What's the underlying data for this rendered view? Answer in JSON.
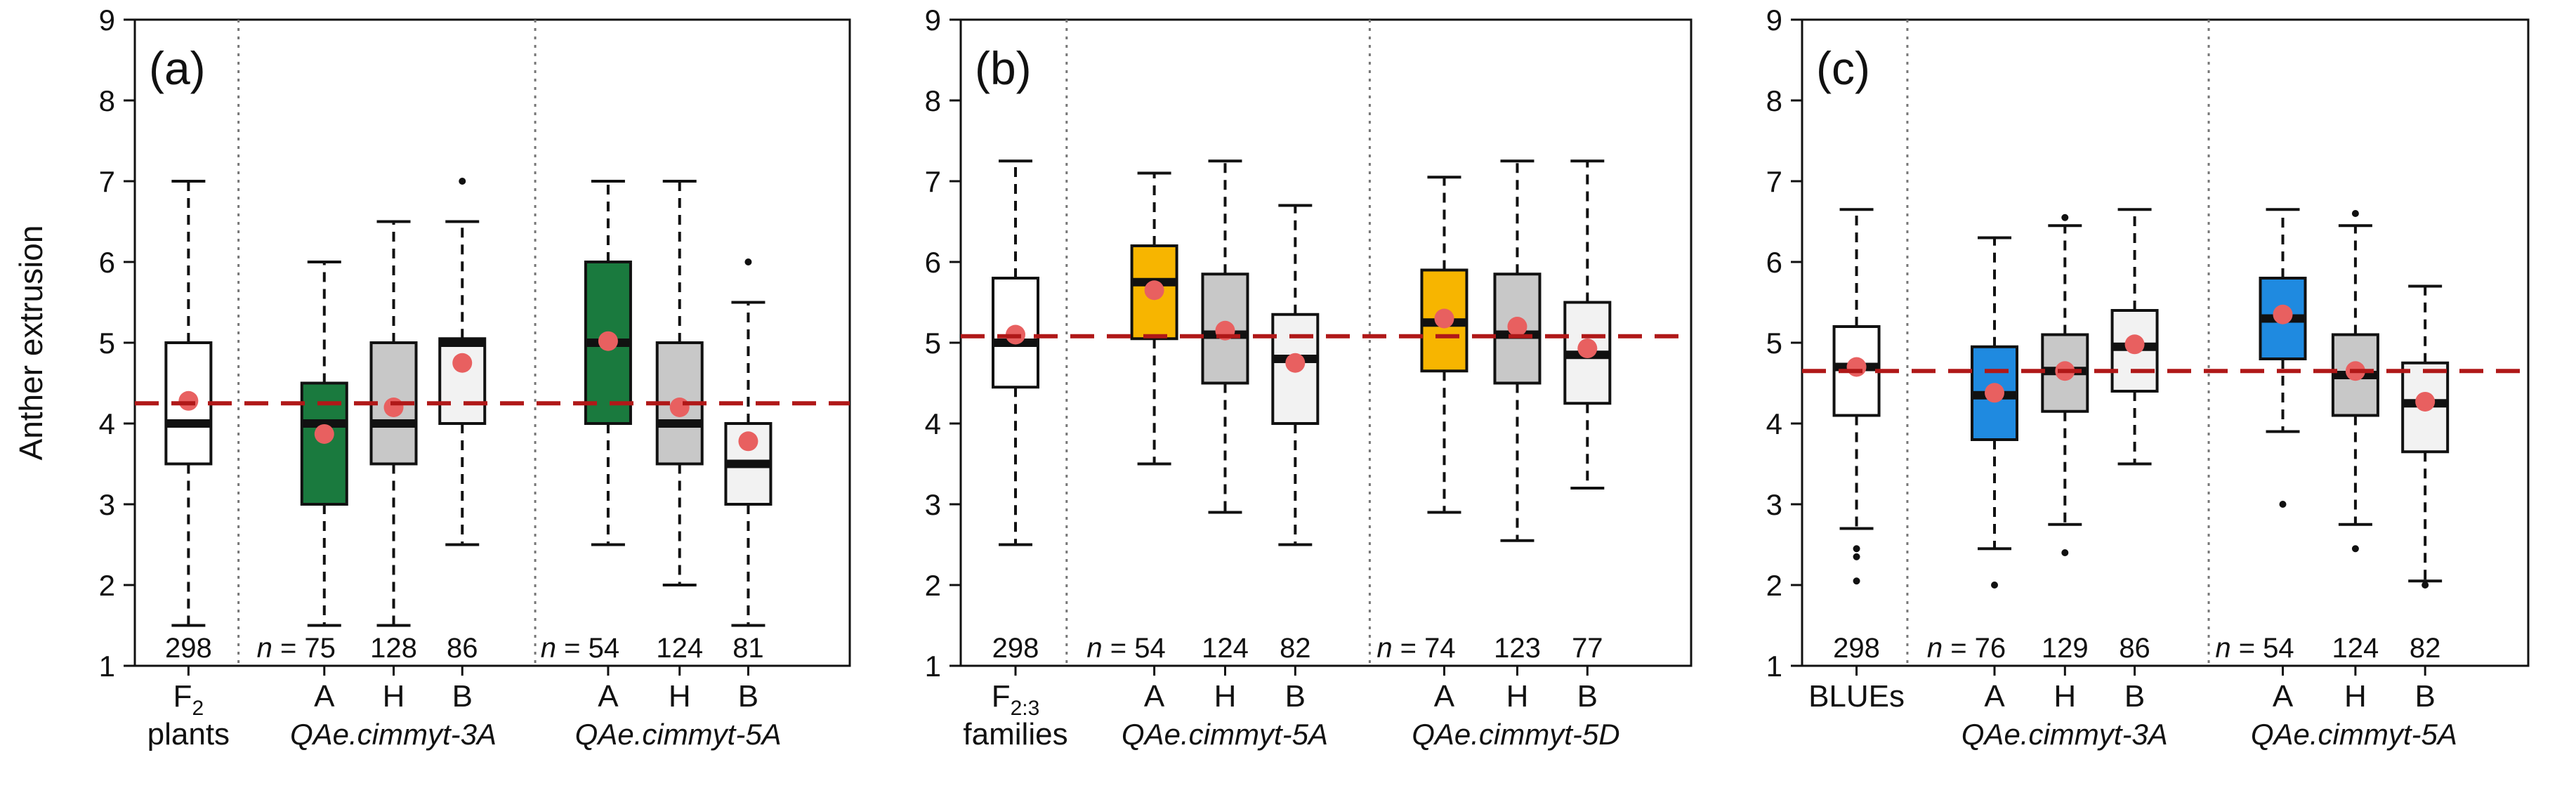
{
  "chart_data": [
    {
      "type": "box",
      "panel_label": "(a)",
      "ylabel": "Anther extrusion",
      "ylim": [
        1,
        9
      ],
      "yticks": [
        1,
        2,
        3,
        4,
        5,
        6,
        7,
        8,
        9
      ],
      "reference_line": 4.25,
      "reference_color": "#b01818",
      "n_prefix": "n =",
      "groups": [
        {
          "name_main": "F",
          "name_sub": "2",
          "name_line2": "plants",
          "qtl": "",
          "boxes": [
            {
              "label": "",
              "count": "298",
              "color": "#ffffff",
              "whisker_low": 1.5,
              "q1": 3.5,
              "median": 4.0,
              "q3": 5.0,
              "whisker_high": 7.0,
              "mean": 4.28,
              "outliers": []
            }
          ]
        },
        {
          "name_main": "",
          "name_sub": "",
          "name_line2": "",
          "qtl": "QAe.cimmyt-3A",
          "boxes": [
            {
              "label": "A",
              "count": "75",
              "color": "#1a7a3e",
              "whisker_low": 1.5,
              "q1": 3.0,
              "median": 4.0,
              "q3": 4.5,
              "whisker_high": 6.0,
              "mean": 3.87,
              "outliers": []
            },
            {
              "label": "H",
              "count": "128",
              "color": "#c8c8c8",
              "whisker_low": 1.5,
              "q1": 3.5,
              "median": 4.0,
              "q3": 5.0,
              "whisker_high": 6.5,
              "mean": 4.2,
              "outliers": []
            },
            {
              "label": "B",
              "count": "86",
              "color": "#f2f2f2",
              "whisker_low": 2.5,
              "q1": 4.0,
              "median": 5.0,
              "q3": 5.05,
              "whisker_high": 6.5,
              "mean": 4.75,
              "outliers": [
                7.0
              ]
            }
          ]
        },
        {
          "name_main": "",
          "name_sub": "",
          "name_line2": "",
          "qtl": "QAe.cimmyt-5A",
          "boxes": [
            {
              "label": "A",
              "count": "54",
              "color": "#1a7a3e",
              "whisker_low": 2.5,
              "q1": 4.0,
              "median": 5.0,
              "q3": 6.0,
              "whisker_high": 7.0,
              "mean": 5.02,
              "outliers": []
            },
            {
              "label": "H",
              "count": "124",
              "color": "#c8c8c8",
              "whisker_low": 2.0,
              "q1": 3.5,
              "median": 4.0,
              "q3": 5.0,
              "whisker_high": 7.0,
              "mean": 4.2,
              "outliers": []
            },
            {
              "label": "B",
              "count": "81",
              "color": "#f2f2f2",
              "whisker_low": 1.5,
              "q1": 3.0,
              "median": 3.5,
              "q3": 4.0,
              "whisker_high": 5.5,
              "mean": 3.78,
              "outliers": [
                6.0
              ]
            }
          ]
        }
      ]
    },
    {
      "type": "box",
      "panel_label": "(b)",
      "ylabel": "",
      "ylim": [
        1,
        9
      ],
      "yticks": [
        1,
        2,
        3,
        4,
        5,
        6,
        7,
        8,
        9
      ],
      "reference_line": 5.08,
      "reference_color": "#b01818",
      "n_prefix": "n =",
      "groups": [
        {
          "name_main": "F",
          "name_sub": "2:3",
          "name_line2": "families",
          "qtl": "",
          "boxes": [
            {
              "label": "",
              "count": "298",
              "color": "#ffffff",
              "whisker_low": 2.5,
              "q1": 4.45,
              "median": 5.0,
              "q3": 5.8,
              "whisker_high": 7.25,
              "mean": 5.1,
              "outliers": []
            }
          ]
        },
        {
          "name_main": "",
          "name_sub": "",
          "name_line2": "",
          "qtl": "QAe.cimmyt-5A",
          "boxes": [
            {
              "label": "A",
              "count": "54",
              "color": "#f7b500",
              "whisker_low": 3.5,
              "q1": 5.05,
              "median": 5.75,
              "q3": 6.2,
              "whisker_high": 7.1,
              "mean": 5.65,
              "outliers": []
            },
            {
              "label": "H",
              "count": "124",
              "color": "#c8c8c8",
              "whisker_low": 2.9,
              "q1": 4.5,
              "median": 5.1,
              "q3": 5.85,
              "whisker_high": 7.25,
              "mean": 5.15,
              "outliers": []
            },
            {
              "label": "B",
              "count": "82",
              "color": "#f2f2f2",
              "whisker_low": 2.5,
              "q1": 4.0,
              "median": 4.8,
              "q3": 5.35,
              "whisker_high": 6.7,
              "mean": 4.75,
              "outliers": []
            }
          ]
        },
        {
          "name_main": "",
          "name_sub": "",
          "name_line2": "",
          "qtl": "QAe.cimmyt-5D",
          "boxes": [
            {
              "label": "A",
              "count": "74",
              "color": "#f7b500",
              "whisker_low": 2.9,
              "q1": 4.65,
              "median": 5.25,
              "q3": 5.9,
              "whisker_high": 7.05,
              "mean": 5.3,
              "outliers": []
            },
            {
              "label": "H",
              "count": "123",
              "color": "#c8c8c8",
              "whisker_low": 2.55,
              "q1": 4.5,
              "median": 5.1,
              "q3": 5.85,
              "whisker_high": 7.25,
              "mean": 5.2,
              "outliers": []
            },
            {
              "label": "B",
              "count": "77",
              "color": "#f2f2f2",
              "whisker_low": 3.2,
              "q1": 4.25,
              "median": 4.85,
              "q3": 5.5,
              "whisker_high": 7.25,
              "mean": 4.93,
              "outliers": []
            }
          ]
        }
      ]
    },
    {
      "type": "box",
      "panel_label": "(c)",
      "ylabel": "",
      "ylim": [
        1,
        9
      ],
      "yticks": [
        1,
        2,
        3,
        4,
        5,
        6,
        7,
        8,
        9
      ],
      "reference_line": 4.65,
      "reference_color": "#b01818",
      "n_prefix": "n =",
      "groups": [
        {
          "name_main": "BLUEs",
          "name_sub": "",
          "name_line2": "",
          "qtl": "",
          "boxes": [
            {
              "label": "",
              "count": "298",
              "color": "#ffffff",
              "whisker_low": 2.7,
              "q1": 4.1,
              "median": 4.7,
              "q3": 5.2,
              "whisker_high": 6.65,
              "mean": 4.7,
              "outliers": [
                2.45,
                2.35,
                2.05
              ]
            }
          ]
        },
        {
          "name_main": "",
          "name_sub": "",
          "name_line2": "",
          "qtl": "QAe.cimmyt-3A",
          "boxes": [
            {
              "label": "A",
              "count": "76",
              "color": "#1f8ae0",
              "whisker_low": 2.45,
              "q1": 3.8,
              "median": 4.35,
              "q3": 4.95,
              "whisker_high": 6.3,
              "mean": 4.38,
              "outliers": [
                2.0
              ]
            },
            {
              "label": "H",
              "count": "129",
              "color": "#c8c8c8",
              "whisker_low": 2.75,
              "q1": 4.15,
              "median": 4.65,
              "q3": 5.1,
              "whisker_high": 6.45,
              "mean": 4.65,
              "outliers": [
                2.4,
                6.55
              ]
            },
            {
              "label": "B",
              "count": "86",
              "color": "#f2f2f2",
              "whisker_low": 3.5,
              "q1": 4.4,
              "median": 4.95,
              "q3": 5.4,
              "whisker_high": 6.65,
              "mean": 4.98,
              "outliers": []
            }
          ]
        },
        {
          "name_main": "",
          "name_sub": "",
          "name_line2": "",
          "qtl": "QAe.cimmyt-5A",
          "boxes": [
            {
              "label": "A",
              "count": "54",
              "color": "#1f8ae0",
              "whisker_low": 3.9,
              "q1": 4.8,
              "median": 5.3,
              "q3": 5.8,
              "whisker_high": 6.65,
              "mean": 5.35,
              "outliers": [
                3.0
              ]
            },
            {
              "label": "H",
              "count": "124",
              "color": "#c8c8c8",
              "whisker_low": 2.75,
              "q1": 4.1,
              "median": 4.6,
              "q3": 5.1,
              "whisker_high": 6.45,
              "mean": 4.65,
              "outliers": [
                2.45,
                6.6
              ]
            },
            {
              "label": "B",
              "count": "82",
              "color": "#f2f2f2",
              "whisker_low": 2.05,
              "q1": 3.65,
              "median": 4.25,
              "q3": 4.75,
              "whisker_high": 5.7,
              "mean": 4.27,
              "outliers": [
                2.0
              ]
            }
          ]
        }
      ]
    }
  ]
}
